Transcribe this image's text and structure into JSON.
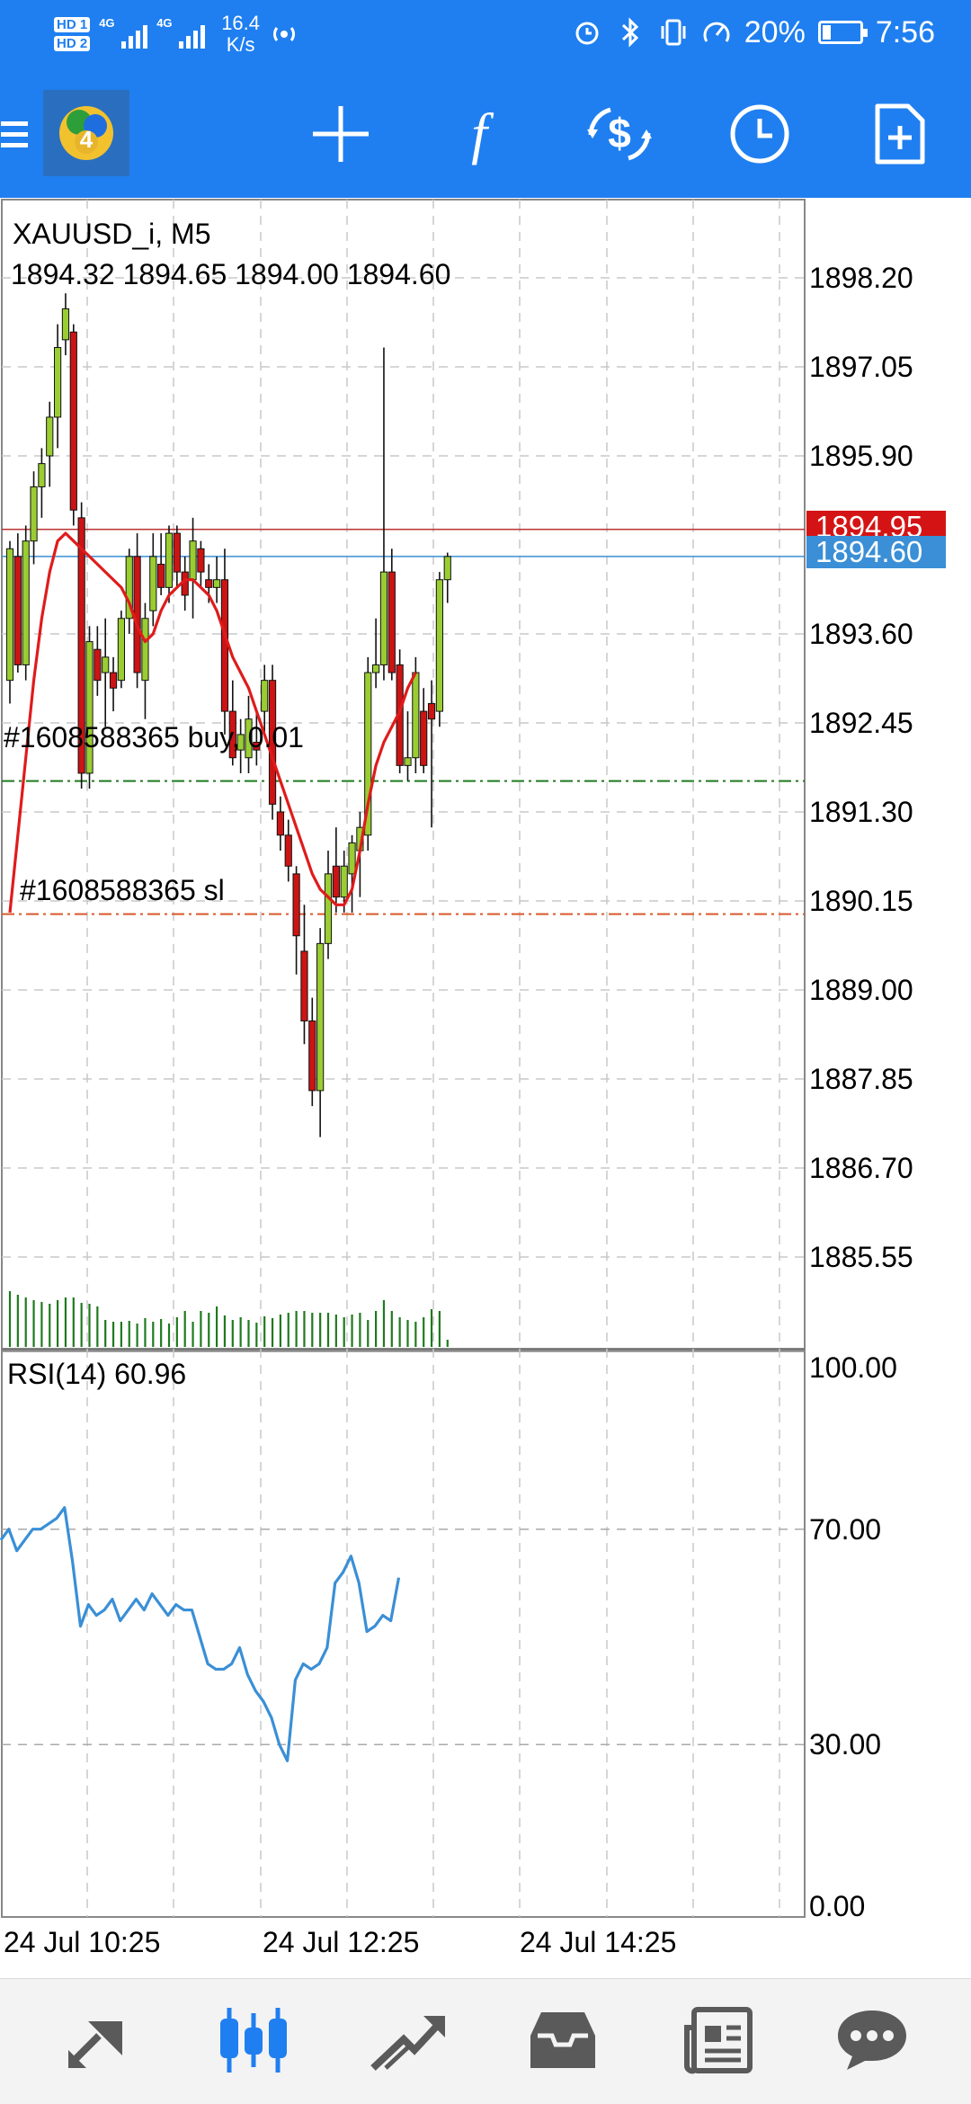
{
  "status_bar": {
    "sim1_label": "HD 1",
    "sim2_label": "HD 2",
    "network1": "4G",
    "network2": "4G",
    "speed_value": "16.4",
    "speed_unit": "K/s",
    "battery": "20%",
    "time": "7:56"
  },
  "toolbar": {
    "logo_icon": "metatrader-logo-icon",
    "items": [
      {
        "name": "crosshair-icon"
      },
      {
        "name": "indicators-f-icon",
        "glyph": "f"
      },
      {
        "name": "symbol-switch-dollar-icon"
      },
      {
        "name": "timeframe-clock-icon"
      },
      {
        "name": "new-order-document-icon"
      }
    ]
  },
  "chart": {
    "symbol_label": "XAUUSD_i, M5",
    "ohlc_label": "1894.32 1894.65 1894.00 1894.60",
    "bid_price": "1894.60",
    "ask_price": "1894.95",
    "order_buy_label": "#1608588365 buy, 0.01",
    "order_sl_label": "#1608588365 sl",
    "y_ticks": [
      "1898.20",
      "1897.05",
      "1895.90",
      "1893.60",
      "1892.45",
      "1891.30",
      "1890.15",
      "1889.00",
      "1887.85",
      "1886.70",
      "1885.55"
    ],
    "rsi_label": "RSI(14) 60.96",
    "rsi_ticks": [
      "100.00",
      "70.00",
      "30.00",
      "0.00"
    ],
    "x_ticks": [
      "24 Jul 10:25",
      "24 Jul 12:25",
      "24 Jul 14:25"
    ],
    "colors": {
      "bull": "#9acd32",
      "bear": "#cc1414",
      "ma": "#e01b1b",
      "rsi": "#3a8fd6",
      "volume": "#1e7a1e",
      "bid_line": "#3a8fd6",
      "ask_line": "#b33",
      "buy_line": "#1e7a1e",
      "sl_line": "#d9582b"
    }
  },
  "chart_data": {
    "type": "candlestick",
    "symbol": "XAUUSD_i",
    "timeframe": "M5",
    "ylim": [
      1885.0,
      1899.0
    ],
    "candles": [
      {
        "o": 1893.0,
        "h": 1894.8,
        "l": 1892.7,
        "c": 1894.7
      },
      {
        "o": 1894.6,
        "h": 1894.9,
        "l": 1893.1,
        "c": 1893.2
      },
      {
        "o": 1893.2,
        "h": 1895.0,
        "l": 1893.0,
        "c": 1894.8
      },
      {
        "o": 1894.8,
        "h": 1895.7,
        "l": 1894.5,
        "c": 1895.5
      },
      {
        "o": 1895.5,
        "h": 1896.0,
        "l": 1895.1,
        "c": 1895.8
      },
      {
        "o": 1895.9,
        "h": 1896.6,
        "l": 1895.5,
        "c": 1896.4
      },
      {
        "o": 1896.4,
        "h": 1897.6,
        "l": 1896.0,
        "c": 1897.3
      },
      {
        "o": 1897.4,
        "h": 1898.0,
        "l": 1897.2,
        "c": 1897.8
      },
      {
        "o": 1897.5,
        "h": 1897.6,
        "l": 1895.0,
        "c": 1895.2
      },
      {
        "o": 1895.1,
        "h": 1895.3,
        "l": 1891.6,
        "c": 1891.8
      },
      {
        "o": 1891.8,
        "h": 1893.7,
        "l": 1891.6,
        "c": 1893.5
      },
      {
        "o": 1893.4,
        "h": 1893.7,
        "l": 1892.8,
        "c": 1893.0
      },
      {
        "o": 1893.1,
        "h": 1893.8,
        "l": 1892.4,
        "c": 1893.3
      },
      {
        "o": 1893.1,
        "h": 1893.3,
        "l": 1892.6,
        "c": 1892.9
      },
      {
        "o": 1893.0,
        "h": 1893.9,
        "l": 1892.9,
        "c": 1893.8
      },
      {
        "o": 1893.8,
        "h": 1894.7,
        "l": 1893.6,
        "c": 1894.6
      },
      {
        "o": 1894.6,
        "h": 1894.9,
        "l": 1892.9,
        "c": 1893.1
      },
      {
        "o": 1893.0,
        "h": 1894.0,
        "l": 1892.5,
        "c": 1893.8
      },
      {
        "o": 1893.9,
        "h": 1894.9,
        "l": 1893.7,
        "c": 1894.6
      },
      {
        "o": 1894.5,
        "h": 1894.9,
        "l": 1894.1,
        "c": 1894.2
      },
      {
        "o": 1894.2,
        "h": 1895.0,
        "l": 1894.0,
        "c": 1894.9
      },
      {
        "o": 1894.9,
        "h": 1895.0,
        "l": 1894.2,
        "c": 1894.4
      },
      {
        "o": 1894.4,
        "h": 1894.6,
        "l": 1893.9,
        "c": 1894.1
      },
      {
        "o": 1894.3,
        "h": 1895.1,
        "l": 1893.8,
        "c": 1894.8
      },
      {
        "o": 1894.7,
        "h": 1894.8,
        "l": 1894.2,
        "c": 1894.4
      },
      {
        "o": 1894.3,
        "h": 1894.5,
        "l": 1894.0,
        "c": 1894.2
      },
      {
        "o": 1894.2,
        "h": 1894.6,
        "l": 1894.0,
        "c": 1894.3
      },
      {
        "o": 1894.3,
        "h": 1894.7,
        "l": 1892.3,
        "c": 1892.6
      },
      {
        "o": 1892.6,
        "h": 1893.0,
        "l": 1891.9,
        "c": 1892.0
      },
      {
        "o": 1892.1,
        "h": 1892.5,
        "l": 1891.8,
        "c": 1892.3
      },
      {
        "o": 1892.0,
        "h": 1892.8,
        "l": 1891.8,
        "c": 1892.5
      },
      {
        "o": 1892.2,
        "h": 1892.6,
        "l": 1891.9,
        "c": 1892.1
      },
      {
        "o": 1892.6,
        "h": 1893.2,
        "l": 1892.3,
        "c": 1893.0
      },
      {
        "o": 1893.0,
        "h": 1893.2,
        "l": 1891.2,
        "c": 1891.4
      },
      {
        "o": 1891.3,
        "h": 1891.5,
        "l": 1890.8,
        "c": 1891.0
      },
      {
        "o": 1891.0,
        "h": 1891.2,
        "l": 1890.4,
        "c": 1890.6
      },
      {
        "o": 1890.5,
        "h": 1890.6,
        "l": 1889.2,
        "c": 1889.7
      },
      {
        "o": 1889.5,
        "h": 1890.1,
        "l": 1888.3,
        "c": 1888.6
      },
      {
        "o": 1888.6,
        "h": 1888.9,
        "l": 1887.5,
        "c": 1887.7
      },
      {
        "o": 1887.7,
        "h": 1889.8,
        "l": 1887.1,
        "c": 1889.6
      },
      {
        "o": 1889.6,
        "h": 1890.8,
        "l": 1889.4,
        "c": 1890.5
      },
      {
        "o": 1890.6,
        "h": 1891.1,
        "l": 1890.0,
        "c": 1890.2
      },
      {
        "o": 1890.2,
        "h": 1890.8,
        "l": 1890.0,
        "c": 1890.6
      },
      {
        "o": 1890.5,
        "h": 1891.0,
        "l": 1890.0,
        "c": 1890.9
      },
      {
        "o": 1890.8,
        "h": 1891.3,
        "l": 1890.2,
        "c": 1891.1
      },
      {
        "o": 1891.0,
        "h": 1893.3,
        "l": 1890.8,
        "c": 1893.1
      },
      {
        "o": 1893.1,
        "h": 1893.8,
        "l": 1892.9,
        "c": 1893.2
      },
      {
        "o": 1893.2,
        "h": 1897.3,
        "l": 1893.0,
        "c": 1894.4
      },
      {
        "o": 1894.4,
        "h": 1894.7,
        "l": 1893.0,
        "c": 1893.1
      },
      {
        "o": 1893.2,
        "h": 1893.4,
        "l": 1891.8,
        "c": 1891.9
      },
      {
        "o": 1891.9,
        "h": 1892.6,
        "l": 1891.7,
        "c": 1892.0
      },
      {
        "o": 1892.0,
        "h": 1893.3,
        "l": 1891.8,
        "c": 1893.1
      },
      {
        "o": 1892.6,
        "h": 1892.9,
        "l": 1891.8,
        "c": 1891.9
      },
      {
        "o": 1892.7,
        "h": 1893.0,
        "l": 1891.1,
        "c": 1892.5
      },
      {
        "o": 1892.6,
        "h": 1894.4,
        "l": 1892.4,
        "c": 1894.3
      },
      {
        "o": 1894.3,
        "h": 1894.65,
        "l": 1894.0,
        "c": 1894.6
      }
    ],
    "ma_series": [
      1890.0,
      1891.0,
      1892.0,
      1893.0,
      1893.8,
      1894.4,
      1894.8,
      1894.9,
      1894.8,
      1894.7,
      1894.6,
      1894.5,
      1894.4,
      1894.3,
      1894.2,
      1894.0,
      1893.7,
      1893.5,
      1893.6,
      1893.9,
      1894.1,
      1894.2,
      1894.3,
      1894.3,
      1894.2,
      1894.1,
      1893.9,
      1893.6,
      1893.3,
      1893.1,
      1892.9,
      1892.6,
      1892.3,
      1892.0,
      1891.7,
      1891.4,
      1891.1,
      1890.8,
      1890.5,
      1890.3,
      1890.2,
      1890.1,
      1890.1,
      1890.3,
      1890.8,
      1891.4,
      1891.9,
      1892.2,
      1892.4,
      1892.6,
      1892.9,
      1893.1
    ],
    "volume": [
      62,
      58,
      55,
      52,
      50,
      48,
      52,
      55,
      55,
      49,
      48,
      45,
      30,
      28,
      28,
      29,
      26,
      32,
      28,
      31,
      26,
      33,
      40,
      28,
      40,
      38,
      45,
      35,
      30,
      33,
      30,
      27,
      34,
      32,
      36,
      38,
      40,
      40,
      38,
      38,
      38,
      36,
      33,
      36,
      38,
      30,
      40,
      52,
      40,
      33,
      30,
      28,
      33,
      42,
      40,
      8
    ],
    "rsi_label": "RSI(14) 60.96",
    "rsi": [
      68,
      70,
      66,
      68,
      70,
      70,
      71,
      72,
      74,
      64,
      52,
      56,
      54,
      55,
      57,
      53,
      55,
      57,
      55,
      58,
      56,
      54,
      56,
      55,
      55,
      50,
      45,
      44,
      44,
      45,
      48,
      43,
      40,
      38,
      35,
      30,
      27,
      42,
      45,
      44,
      45,
      48,
      60,
      62,
      65,
      60,
      51,
      52,
      54,
      53,
      61
    ],
    "ylim_rsi": [
      0,
      100
    ],
    "bid": 1894.6,
    "ask": 1894.95,
    "orders": [
      {
        "label": "#1608588365 buy, 0.01",
        "price": 1891.7
      },
      {
        "label": "#1608588365 sl",
        "price": 1889.98
      }
    ],
    "x_ticks": [
      "24 Jul 10:25",
      "24 Jul 12:25",
      "24 Jul 14:25"
    ]
  },
  "bottom_nav": {
    "items": [
      {
        "name": "nav-quotes-icon"
      },
      {
        "name": "nav-chart-icon",
        "active": true
      },
      {
        "name": "nav-trade-icon"
      },
      {
        "name": "nav-history-icon"
      },
      {
        "name": "nav-news-icon"
      },
      {
        "name": "nav-messages-icon"
      }
    ],
    "active_color": "#1f7ff0",
    "inactive_color": "#5a5a5a"
  }
}
